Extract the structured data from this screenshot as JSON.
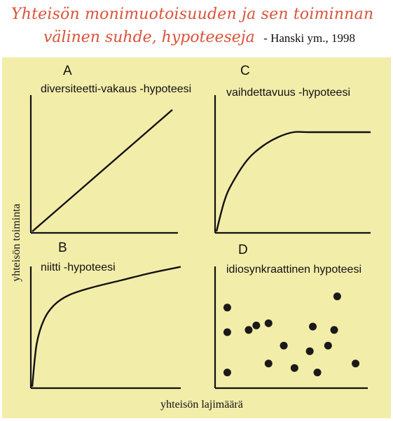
{
  "title": {
    "line1": "Yhteisön monimuotoisuuden ja sen toiminnan",
    "line2": "välinen suhde, hypoteeseja",
    "citation": "- Hanski ym., 1998"
  },
  "colors": {
    "background_panel": "#f3edaa",
    "title": "#d9533a",
    "ink": "#111111"
  },
  "chart_data": {
    "type": "multi-panel-schematic",
    "xlabel": "yhteisön lajimäärä",
    "ylabel": "yhteisön toiminta",
    "grid": false,
    "panels": [
      {
        "id": "A",
        "letter": "A",
        "label": "diversiteetti-vakaus -hypoteesi",
        "type": "line",
        "shape": "linear-increasing",
        "x": [
          0,
          1
        ],
        "y": [
          0,
          1
        ]
      },
      {
        "id": "C",
        "letter": "C",
        "label": "vaihdettavuus -hypoteesi",
        "type": "line",
        "shape": "saturating-plateau",
        "x": [
          0,
          0.05,
          0.1,
          0.2,
          0.3,
          0.4,
          0.5,
          0.6,
          1
        ],
        "y": [
          0,
          0.3,
          0.48,
          0.72,
          0.86,
          0.95,
          1,
          1,
          1
        ]
      },
      {
        "id": "B",
        "letter": "B",
        "label": "niitti -hypoteesi",
        "type": "line",
        "shape": "increasing-decelerating",
        "x": [
          0,
          0.03,
          0.08,
          0.15,
          0.25,
          0.4,
          0.6,
          0.8,
          1
        ],
        "y": [
          0,
          0.35,
          0.55,
          0.67,
          0.75,
          0.81,
          0.87,
          0.93,
          0.98
        ]
      },
      {
        "id": "D",
        "letter": "D",
        "label": "idiosynkraattinen hypoteesi",
        "type": "scatter",
        "shape": "random",
        "points": [
          [
            0.08,
            0.72
          ],
          [
            0.27,
            0.56
          ],
          [
            0.35,
            0.58
          ],
          [
            0.8,
            0.82
          ],
          [
            0.08,
            0.5
          ],
          [
            0.22,
            0.52
          ],
          [
            0.64,
            0.55
          ],
          [
            0.78,
            0.52
          ],
          [
            0.45,
            0.38
          ],
          [
            0.62,
            0.33
          ],
          [
            0.74,
            0.38
          ],
          [
            0.35,
            0.22
          ],
          [
            0.52,
            0.18
          ],
          [
            0.92,
            0.22
          ],
          [
            0.67,
            0.14
          ],
          [
            0.08,
            0.14
          ]
        ]
      }
    ]
  }
}
